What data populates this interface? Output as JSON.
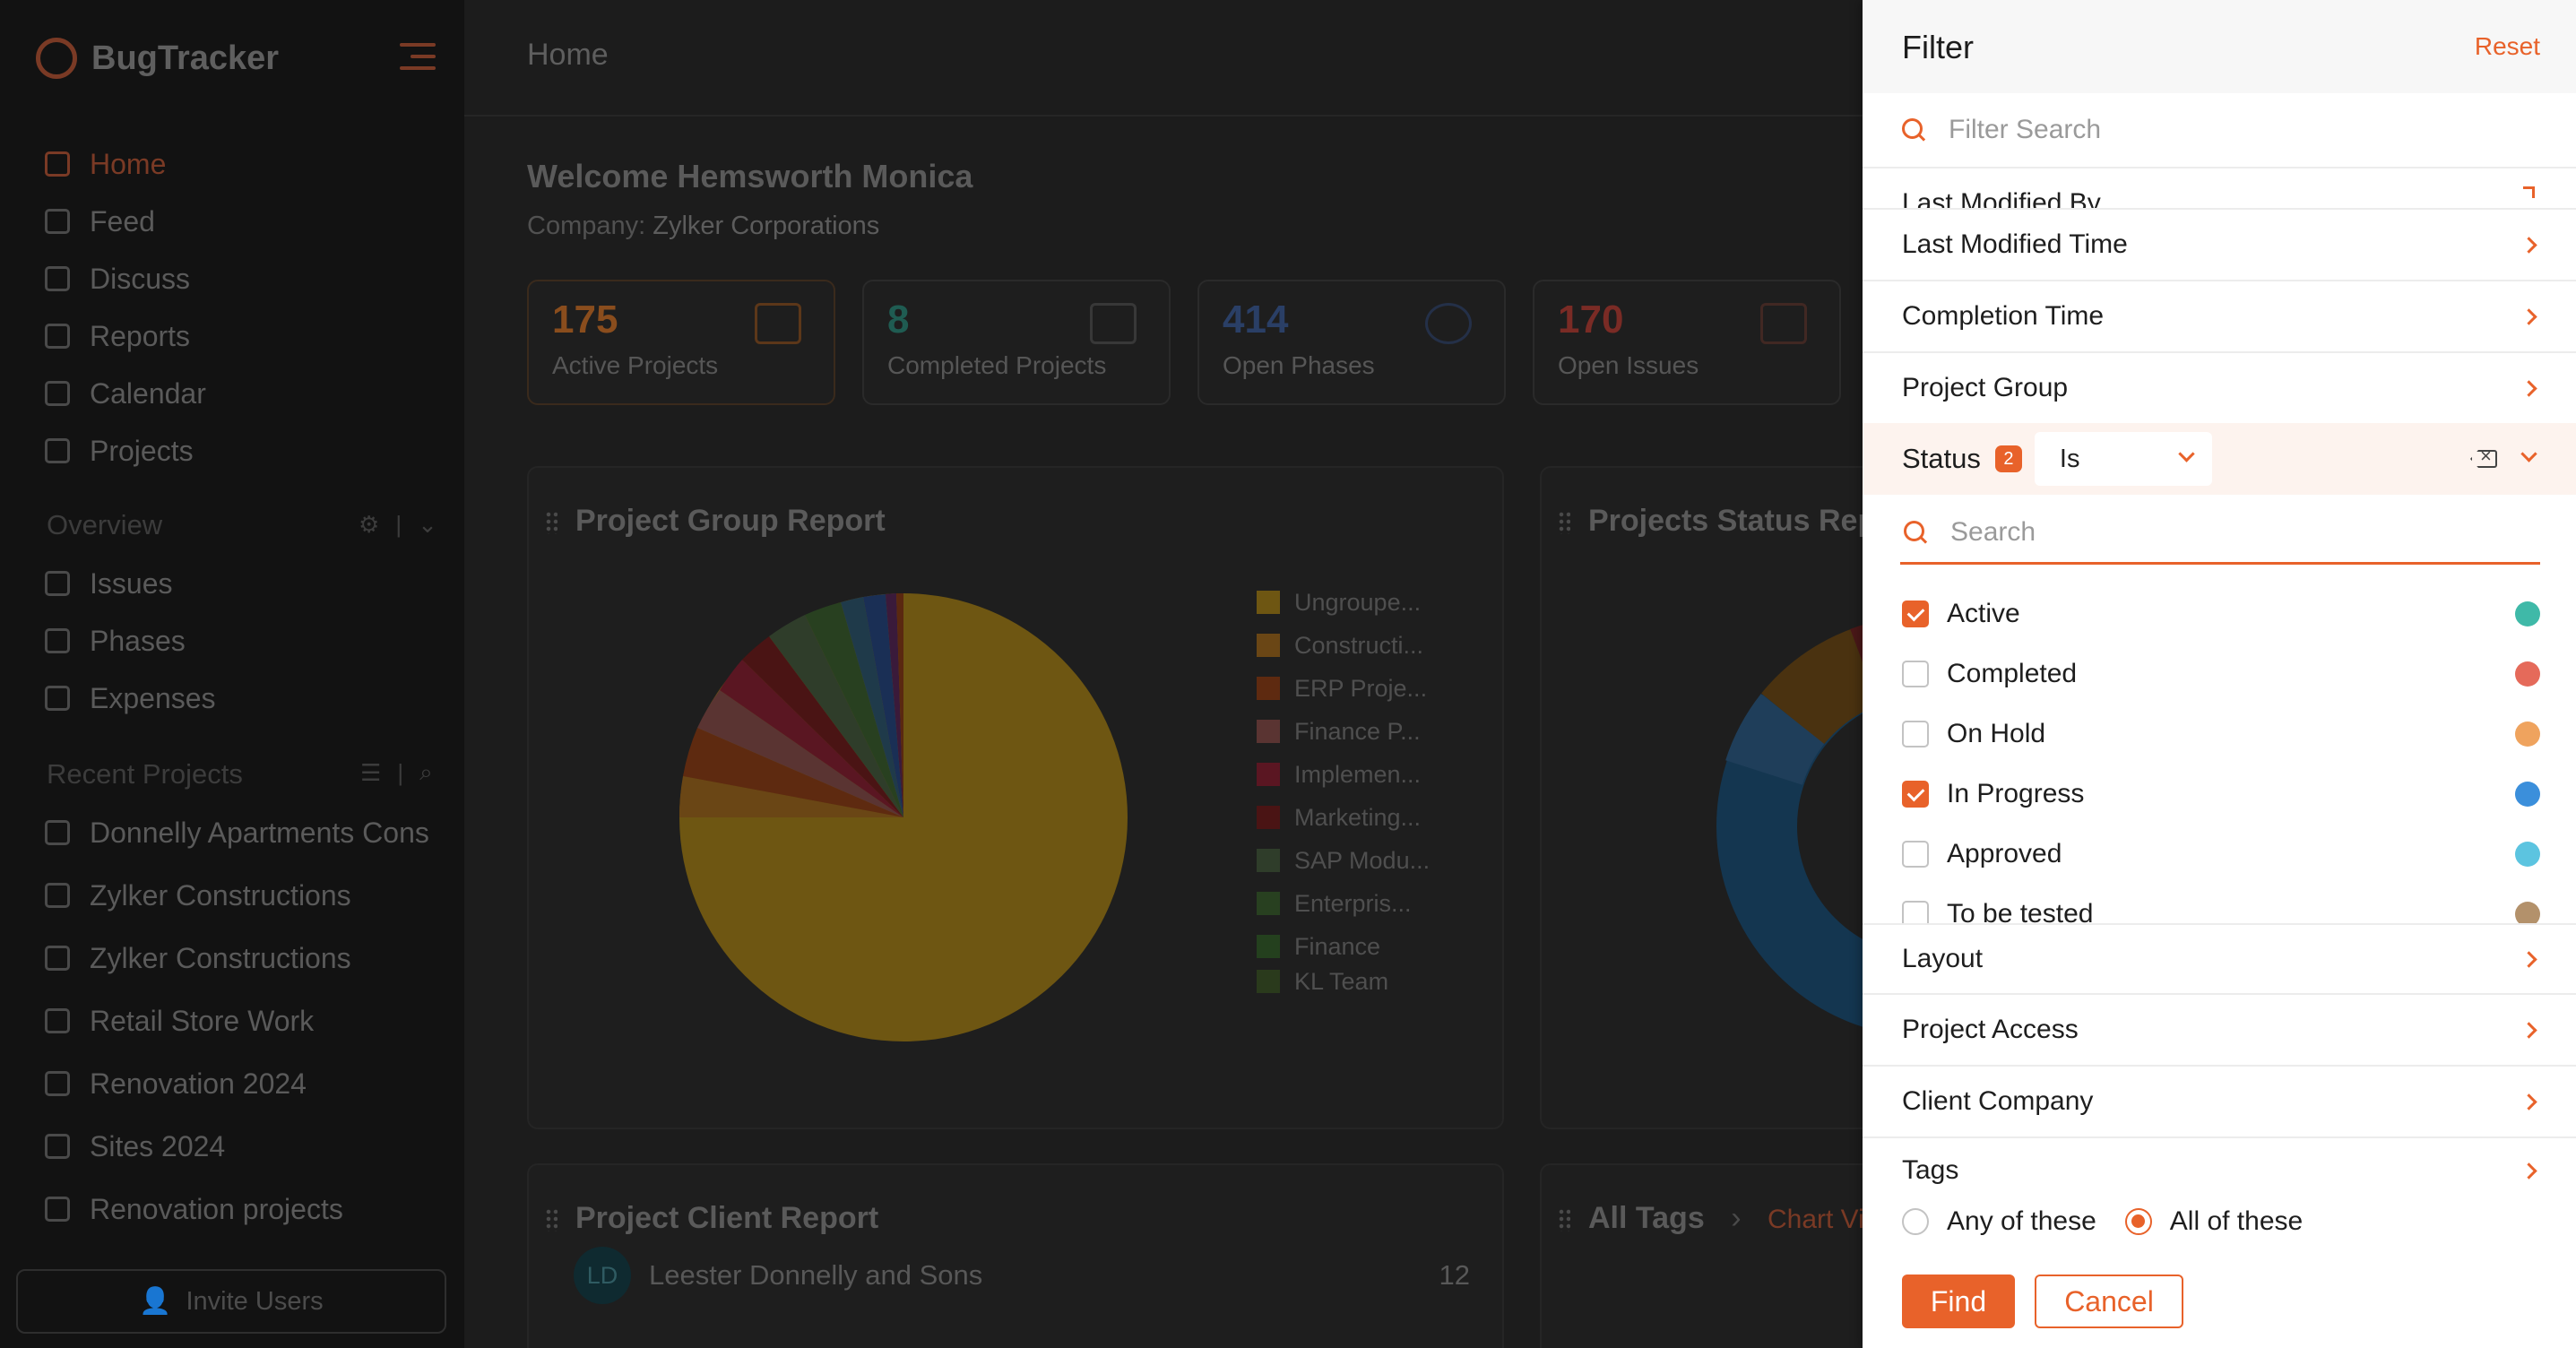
{
  "app": {
    "name": "BugTracker"
  },
  "sidebar": {
    "nav": [
      {
        "label": "Home",
        "icon": "home-icon",
        "active": true
      },
      {
        "label": "Feed",
        "icon": "feed-icon"
      },
      {
        "label": "Discuss",
        "icon": "discuss-icon"
      },
      {
        "label": "Reports",
        "icon": "reports-icon"
      },
      {
        "label": "Calendar",
        "icon": "calendar-icon"
      },
      {
        "label": "Projects",
        "icon": "projects-icon"
      }
    ],
    "overview_title": "Overview",
    "overview": [
      {
        "label": "Issues",
        "icon": "issues-icon"
      },
      {
        "label": "Phases",
        "icon": "phases-icon"
      },
      {
        "label": "Expenses",
        "icon": "expenses-icon"
      }
    ],
    "recent_title": "Recent Projects",
    "recent": [
      "Donnelly Apartments Cons",
      "Zylker Constructions",
      "Zylker Constructions",
      "Retail Store Work",
      "Renovation 2024",
      "Sites 2024",
      "Renovation projects"
    ],
    "invite_label": "Invite Users"
  },
  "main": {
    "page_title": "Home",
    "welcome": "Welcome Hemsworth Monica",
    "company_label": "Company:",
    "company_name": "Zylker Corporations",
    "stats": [
      {
        "value": "175",
        "label": "Active Projects",
        "color": "#8a4d1d"
      },
      {
        "value": "8",
        "label": "Completed Projects",
        "color": "#1f5c52"
      },
      {
        "value": "414",
        "label": "Open Phases",
        "color": "#2a3f66"
      },
      {
        "value": "170",
        "label": "Open Issues",
        "color": "#7a2b25"
      }
    ],
    "project_group_report": {
      "title": "Project Group Report",
      "legend": [
        {
          "label": "Ungroupe...",
          "color": "#6e5612"
        },
        {
          "label": "Constructi...",
          "color": "#6a4615"
        },
        {
          "label": "ERP Proje...",
          "color": "#5e2a10"
        },
        {
          "label": "Finance P...",
          "color": "#5a3432"
        },
        {
          "label": "Implemen...",
          "color": "#5a1622"
        },
        {
          "label": "Marketing...",
          "color": "#4a1414"
        },
        {
          "label": "SAP Modu...",
          "color": "#2f3d2a"
        },
        {
          "label": "Enterpris...",
          "color": "#284020"
        },
        {
          "label": "Finance",
          "color": "#24401e"
        },
        {
          "label": "KL Team",
          "color": "#2a3a1c"
        }
      ]
    },
    "projects_status_report": {
      "title": "Projects Status Repo"
    },
    "project_client_report": {
      "title": "Project Client Report",
      "rows": [
        {
          "initials": "LD",
          "name": "Leester Donnelly and Sons",
          "count": "12"
        }
      ]
    },
    "all_tags": {
      "title": "All Tags",
      "chart_view": "Chart Vie"
    }
  },
  "filter": {
    "title": "Filter",
    "reset": "Reset",
    "search_placeholder": "Filter Search",
    "fields_top": [
      "Last Modified By",
      "Last Modified Time",
      "Completion Time",
      "Project Group"
    ],
    "status": {
      "label": "Status",
      "count": "2",
      "operator": "Is",
      "search_placeholder": "Search",
      "options": [
        {
          "label": "Active",
          "checked": true,
          "color": "#3fb9a8"
        },
        {
          "label": "Completed",
          "checked": false,
          "color": "#e56a5a"
        },
        {
          "label": "On Hold",
          "checked": false,
          "color": "#efa35e"
        },
        {
          "label": "In Progress",
          "checked": true,
          "color": "#3b8fdb"
        },
        {
          "label": "Approved",
          "checked": false,
          "color": "#5cc4e0"
        },
        {
          "label": "To be tested",
          "checked": false,
          "color": "#b3916b"
        }
      ]
    },
    "fields_bottom": [
      "Layout",
      "Project Access",
      "Client Company",
      "Tags"
    ],
    "match": {
      "any": "Any of these",
      "all": "All of these",
      "selected": "all"
    },
    "find": "Find",
    "cancel": "Cancel"
  }
}
